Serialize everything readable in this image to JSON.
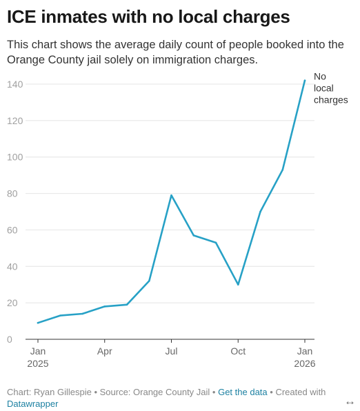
{
  "header": {
    "title": "ICE inmates with no local charges",
    "subtitle": "This chart shows the average daily count of people booked into the Orange County jail solely on immigration charges."
  },
  "footer": {
    "chart_credit": "Chart: Ryan Gillespie",
    "source": "Source: Orange County Jail",
    "get_data": "Get the data",
    "created_with": "Created with",
    "datawrapper": "Datawrapper",
    "separator": " • "
  },
  "expand_icon": "↔",
  "colors": {
    "line": "#27a1c6",
    "grid": "#e4e4e4",
    "axis": "#333333",
    "tick": "#a0a0a0",
    "link": "#1d81a2"
  },
  "chart_data": {
    "type": "line",
    "title": "ICE inmates with no local charges",
    "xlabel": "",
    "ylabel": "",
    "x": [
      "2025-01",
      "2025-02",
      "2025-03",
      "2025-04",
      "2025-05",
      "2025-06",
      "2025-07",
      "2025-08",
      "2025-09",
      "2025-10",
      "2025-11",
      "2025-12",
      "2026-01"
    ],
    "series": [
      {
        "name": "No local charges",
        "values": [
          9,
          13,
          14,
          18,
          19,
          32,
          79,
          57,
          53,
          30,
          70,
          93,
          142
        ]
      }
    ],
    "ylim": [
      0,
      140
    ],
    "yticks": [
      0,
      20,
      40,
      60,
      80,
      100,
      120,
      140
    ],
    "xticks": [
      {
        "x": "2025-01",
        "label": "Jan",
        "sublabel": "2025"
      },
      {
        "x": "2025-04",
        "label": "Apr",
        "sublabel": ""
      },
      {
        "x": "2025-07",
        "label": "Jul",
        "sublabel": ""
      },
      {
        "x": "2025-10",
        "label": "Oct",
        "sublabel": ""
      },
      {
        "x": "2026-01",
        "label": "Jan",
        "sublabel": "2026"
      }
    ],
    "series_label_lines": [
      "No",
      "local",
      "charges"
    ],
    "grid": true
  }
}
